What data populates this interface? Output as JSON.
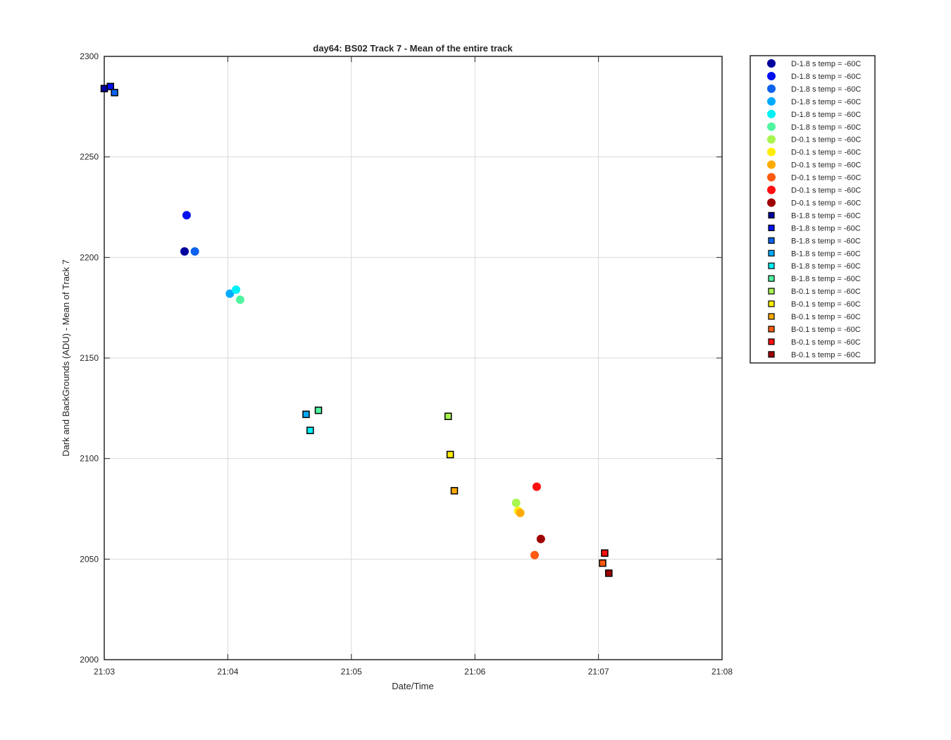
{
  "chart_data": {
    "type": "scatter",
    "title": "day64: BS02  Track 7 - Mean of the entire track",
    "xlabel": "Date/Time",
    "ylabel": "Dark and BackGrounds (ADU) - Mean of Track 7",
    "xlim": [
      "21:03",
      "21:08"
    ],
    "ylim": [
      2000,
      2300
    ],
    "x_ticks": [
      "21:03",
      "21:04",
      "21:05",
      "21:06",
      "21:07",
      "21:08"
    ],
    "y_ticks": [
      2000,
      2050,
      2100,
      2150,
      2200,
      2250,
      2300
    ],
    "grid": true,
    "legend_position": "outside-right",
    "series": [
      {
        "name": "D-1.8 s temp = -60C",
        "marker": "circle",
        "color": "#00009f",
        "points": [
          {
            "x": "21:03:39",
            "y": 2203
          }
        ]
      },
      {
        "name": "D-1.8 s temp = -60C",
        "marker": "circle",
        "color": "#0011ee",
        "points": [
          {
            "x": "21:03:40",
            "y": 2221
          }
        ]
      },
      {
        "name": "D-1.8 s temp = -60C",
        "marker": "circle",
        "color": "#0d62ef",
        "points": [
          {
            "x": "21:03:44",
            "y": 2203
          }
        ]
      },
      {
        "name": "D-1.8 s temp = -60C",
        "marker": "circle",
        "color": "#00aaff",
        "points": [
          {
            "x": "21:04:01",
            "y": 2182
          }
        ]
      },
      {
        "name": "D-1.8 s temp = -60C",
        "marker": "circle",
        "color": "#00f0f8",
        "points": [
          {
            "x": "21:04:04",
            "y": 2184
          }
        ]
      },
      {
        "name": "D-1.8 s temp = -60C",
        "marker": "circle",
        "color": "#50f5a0",
        "points": [
          {
            "x": "21:04:06",
            "y": 2179
          }
        ]
      },
      {
        "name": "D-0.1 s temp = -60C",
        "marker": "circle",
        "color": "#a8f550",
        "points": [
          {
            "x": "21:06:20",
            "y": 2078
          }
        ]
      },
      {
        "name": "D-0.1 s temp = -60C",
        "marker": "circle",
        "color": "#ffee00",
        "points": [
          {
            "x": "21:06:21",
            "y": 2074
          }
        ]
      },
      {
        "name": "D-0.1 s temp = -60C",
        "marker": "circle",
        "color": "#ffaa00",
        "points": [
          {
            "x": "21:06:22",
            "y": 2073
          }
        ]
      },
      {
        "name": "D-0.1 s temp = -60C",
        "marker": "circle",
        "color": "#ff5a10",
        "points": [
          {
            "x": "21:06:29",
            "y": 2052
          }
        ]
      },
      {
        "name": "D-0.1 s temp = -60C",
        "marker": "circle",
        "color": "#ff0f0f",
        "points": [
          {
            "x": "21:06:30",
            "y": 2086
          }
        ]
      },
      {
        "name": "D-0.1 s temp = -60C",
        "marker": "circle",
        "color": "#a00000",
        "points": [
          {
            "x": "21:06:32",
            "y": 2060
          }
        ]
      },
      {
        "name": "B-1.8 s temp = -60C",
        "marker": "square",
        "color": "#00009f",
        "points": [
          {
            "x": "21:03:00",
            "y": 2284
          }
        ]
      },
      {
        "name": "B-1.8 s temp = -60C",
        "marker": "square",
        "color": "#0011ee",
        "points": [
          {
            "x": "21:03:03",
            "y": 2285
          }
        ]
      },
      {
        "name": "B-1.8 s temp = -60C",
        "marker": "square",
        "color": "#0d62ef",
        "points": [
          {
            "x": "21:03:05",
            "y": 2282
          }
        ]
      },
      {
        "name": "B-1.8 s temp = -60C",
        "marker": "square",
        "color": "#00aaff",
        "points": [
          {
            "x": "21:04:38",
            "y": 2122
          }
        ]
      },
      {
        "name": "B-1.8 s temp = -60C",
        "marker": "square",
        "color": "#00f0f8",
        "points": [
          {
            "x": "21:04:40",
            "y": 2114
          }
        ]
      },
      {
        "name": "B-1.8 s temp = -60C",
        "marker": "square",
        "color": "#50f5a0",
        "points": [
          {
            "x": "21:04:44",
            "y": 2124
          }
        ]
      },
      {
        "name": "B-0.1 s temp = -60C",
        "marker": "square",
        "color": "#a8f550",
        "points": [
          {
            "x": "21:05:47",
            "y": 2121
          }
        ]
      },
      {
        "name": "B-0.1 s temp = -60C",
        "marker": "square",
        "color": "#ffee00",
        "points": [
          {
            "x": "21:05:48",
            "y": 2102
          }
        ]
      },
      {
        "name": "B-0.1 s temp = -60C",
        "marker": "square",
        "color": "#ffaa00",
        "points": [
          {
            "x": "21:05:50",
            "y": 2084
          }
        ]
      },
      {
        "name": "B-0.1 s temp = -60C",
        "marker": "square",
        "color": "#ff5a10",
        "points": [
          {
            "x": "21:07:02",
            "y": 2048
          }
        ]
      },
      {
        "name": "B-0.1 s temp = -60C",
        "marker": "square",
        "color": "#ff0f0f",
        "points": [
          {
            "x": "21:07:03",
            "y": 2053
          }
        ]
      },
      {
        "name": "B-0.1 s temp = -60C",
        "marker": "square",
        "color": "#a00000",
        "points": [
          {
            "x": "21:07:05",
            "y": 2043
          }
        ]
      }
    ]
  }
}
